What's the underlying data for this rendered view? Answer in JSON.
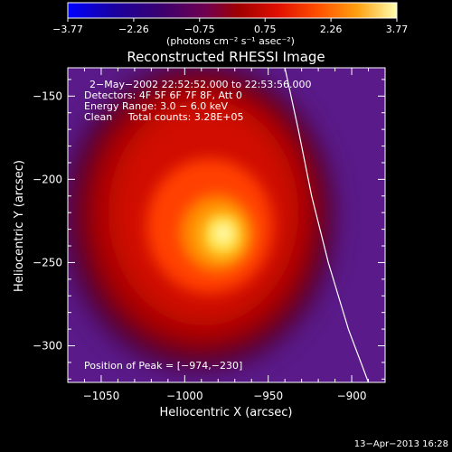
{
  "chart_data": {
    "type": "heatmap",
    "title": "Reconstructed RHESSI Image",
    "xlabel": "Heliocentric X (arcsec)",
    "ylabel": "Heliocentric Y (arcsec)",
    "xlim": [
      -1070,
      -880
    ],
    "ylim": [
      -322,
      -133
    ],
    "xticks": [
      -1050,
      -1000,
      -950,
      -900
    ],
    "yticks": [
      -150,
      -200,
      -250,
      -300
    ],
    "xtick_labels": [
      "−1050",
      "−1000",
      "−950",
      "−900"
    ],
    "ytick_labels": [
      "−150",
      "−200",
      "−250",
      "−300"
    ],
    "colorbar": {
      "min": -3.77,
      "max": 3.77,
      "ticks": [
        -3.77,
        -2.26,
        -0.75,
        0.75,
        2.26,
        3.77
      ],
      "tick_labels": [
        "−3.77",
        "−2.26",
        "−0.75",
        "0.75",
        "2.26",
        "3.77"
      ],
      "unit_label": "(photons cm⁻² s⁻¹ asec⁻²)"
    },
    "annotations": {
      "time_range": "2−May−2002 22:52:52.000 to 22:53:56.000",
      "detectors": "Detectors: 4F 5F 6F 7F 8F, Att 0",
      "energy": "Energy Range: 3.0 − 6.0 keV",
      "clean": "Clean     Total counts: 3.28E+05",
      "peak": "Position of Peak = [−974,−230]"
    },
    "peak": {
      "x": -974,
      "y": -230
    },
    "limb_curve": [
      {
        "x": -940,
        "y": -133
      },
      {
        "x": -932,
        "y": -170
      },
      {
        "x": -924,
        "y": -210
      },
      {
        "x": -914,
        "y": -250
      },
      {
        "x": -902,
        "y": -290
      },
      {
        "x": -890,
        "y": -322
      }
    ],
    "colormap": [
      "#0000ff",
      "#2a0080",
      "#3a0060",
      "#5a0070",
      "#8a0000",
      "#c00000",
      "#ff2000",
      "#ff6000",
      "#ffa000",
      "#ffd020",
      "#ffffc0"
    ]
  },
  "footer": {
    "timestamp": "13−Apr−2013 16:28"
  }
}
